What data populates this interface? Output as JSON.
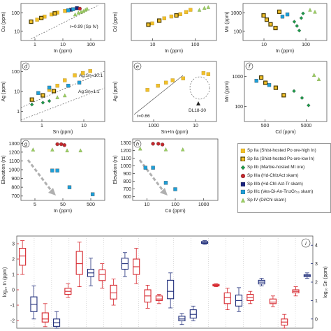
{
  "colors": {
    "IIa": "#f2c029",
    "IIa_edge": "#a07d14",
    "IIb": "#f2c029",
    "IIb_edge": "#4a3b00",
    "IIc": "#1d9a4a",
    "IIIa": "#c4282d",
    "IIIb": "#1a237e",
    "IIIc": "#1e9fd8",
    "IV": "#9bcf63",
    "box_in": "#d6262d",
    "box_sn": "#1f2d7a",
    "arrow": "#b0b0b0"
  },
  "panels": {
    "a": {
      "ylabel": "Cu (ppm)",
      "xlabel": "In (ppm)",
      "xticks": [
        "1",
        "10",
        "100"
      ],
      "yticks": [
        "100",
        "10"
      ],
      "annotation": "r=0.99 (Sp IV)"
    },
    "b": {
      "ylabel": "Cd (ppm)",
      "xlabel": "In (ppm)",
      "xticks": [
        "10",
        "100"
      ]
    },
    "c": {
      "ylabel": "Mn (ppm)",
      "xlabel": "In (ppm)",
      "xticks": [
        "10",
        "100"
      ],
      "yticks": [
        "1000",
        "100"
      ]
    },
    "d": {
      "label": "d",
      "ylabel": "Ag (ppm)",
      "xlabel": "Sn (ppm)",
      "xticks": [
        "1",
        "10"
      ],
      "yticks": [
        "100",
        "10",
        "1"
      ],
      "line1": "Ag:Sn=10:1",
      "line2": "Ag:Sn=1:1"
    },
    "e": {
      "label": "e",
      "ylabel": "Ag (ppm)",
      "xlabel": "Sn+In (ppm)",
      "xticks": [
        "1000",
        "10"
      ],
      "annotation_r": "r=0.66",
      "annotation_dl": "DL18-30"
    },
    "f": {
      "label": "f",
      "ylabel": "Mn (ppm)",
      "xlabel": "Cd (ppm)",
      "xticks": [
        "500",
        "5000"
      ],
      "yticks": [
        "1000",
        "100"
      ]
    },
    "g": {
      "label": "g",
      "ylabel": "Elevation (m)",
      "xlabel": "In (ppm)",
      "xticks": [
        "5",
        "50",
        "500"
      ],
      "yticks": [
        "1300",
        "1200",
        "1100",
        "1000",
        "900",
        "800",
        "700"
      ]
    },
    "h": {
      "label": "h",
      "ylabel": "Elevation (m)",
      "xlabel": "Co (ppm)",
      "xticks": [
        "10",
        "100",
        "1000"
      ],
      "yticks": [
        "1300",
        "1200",
        "1100",
        "1000",
        "900",
        "800",
        "700",
        "600"
      ]
    },
    "i": {
      "label": "i",
      "ylabel_left": "log₁₀ In (ppm)",
      "ylabel_right": "log₁₀ Sn (ppm)",
      "yticks_left": [
        "3",
        "2",
        "1",
        "0",
        "-1",
        "-2"
      ],
      "yticks_right": [
        "4",
        "3",
        "2",
        "1",
        "0"
      ]
    }
  },
  "legend": [
    {
      "key": "IIa",
      "label": "Sp IIa (Shist-hosted Po ore-high In)",
      "shape": "square"
    },
    {
      "key": "IIb",
      "label": "Sp IIa (Shist-hosted Po ore-low In)",
      "shape": "square-edge"
    },
    {
      "key": "IIc",
      "label": "Sp IIb (Marble-hosted Mt ore)",
      "shape": "diamond"
    },
    {
      "key": "IIIa",
      "label": "Sp IIIa (Hd-Chl±Act skarn)",
      "shape": "circle"
    },
    {
      "key": "IIIb",
      "label": "Sp IIIb (Hd-Chl-Act-Tr skarn)",
      "shape": "square"
    },
    {
      "key": "IIIc",
      "label": "Sp IIIc (Ves-Di-An-Tn±Gr₅₀ skarn)",
      "shape": "square"
    },
    {
      "key": "IV",
      "label": "Sp IV (Di/Chl skarn)",
      "shape": "triangle"
    }
  ],
  "chart_data": [
    {
      "panel": "a",
      "type": "scatter",
      "xlabel": "In (ppm)",
      "ylabel": "Cu (ppm)",
      "xscale": "log",
      "yscale": "log",
      "xlim": [
        1,
        300
      ],
      "ylim": [
        5,
        300
      ],
      "series": [
        {
          "key": "IV",
          "points": [
            [
              40,
              90
            ],
            [
              50,
              110
            ],
            [
              60,
              120
            ],
            [
              70,
              130
            ],
            [
              80,
              150
            ],
            [
              90,
              170
            ]
          ]
        },
        {
          "key": "IIa",
          "points": [
            [
              3,
              50
            ],
            [
              5,
              70
            ],
            [
              8,
              90
            ],
            [
              12,
              110
            ],
            [
              20,
              130
            ]
          ]
        },
        {
          "key": "IIb",
          "points": [
            [
              2,
              40
            ],
            [
              4,
              60
            ],
            [
              10,
              100
            ]
          ]
        },
        {
          "key": "IIIb",
          "points": [
            [
              30,
              150
            ],
            [
              45,
              180
            ]
          ]
        },
        {
          "key": "IIIc",
          "points": [
            [
              25,
              140
            ],
            [
              35,
              160
            ]
          ]
        },
        {
          "key": "IIIa",
          "points": [
            [
              55,
              170
            ]
          ]
        }
      ]
    },
    {
      "panel": "b",
      "type": "scatter",
      "xlabel": "In (ppm)",
      "ylabel": "Cd (ppm)",
      "xscale": "log",
      "yscale": "log",
      "xlim": [
        3,
        400
      ],
      "ylim": [
        500,
        10000
      ],
      "series": [
        {
          "key": "IIa",
          "points": [
            [
              10,
              2000
            ],
            [
              20,
              3000
            ],
            [
              30,
              3500
            ],
            [
              50,
              4200
            ],
            [
              70,
              5000
            ],
            [
              90,
              6000
            ]
          ]
        },
        {
          "key": "IIb",
          "points": [
            [
              8,
              1800
            ],
            [
              15,
              2500
            ],
            [
              40,
              3800
            ]
          ]
        },
        {
          "key": "IV",
          "points": [
            [
              150,
              6000
            ],
            [
              200,
              7000
            ],
            [
              250,
              7500
            ]
          ]
        }
      ]
    },
    {
      "panel": "c",
      "type": "scatter",
      "xlabel": "In (ppm)",
      "ylabel": "Mn (ppm)",
      "xscale": "log",
      "yscale": "log",
      "xlim": [
        3,
        400
      ],
      "ylim": [
        50,
        3000
      ],
      "series": [
        {
          "key": "IIb",
          "points": [
            [
              10,
              800
            ],
            [
              12,
              500
            ],
            [
              15,
              300
            ],
            [
              20,
              200
            ],
            [
              25,
              1200
            ]
          ]
        },
        {
          "key": "IIc",
          "points": [
            [
              60,
              400
            ],
            [
              70,
              250
            ],
            [
              80,
              150
            ],
            [
              90,
              600
            ],
            [
              100,
              1000
            ]
          ]
        },
        {
          "key": "IIIc",
          "points": [
            [
              30,
              700
            ],
            [
              40,
              900
            ]
          ]
        },
        {
          "key": "IV",
          "points": [
            [
              150,
              1500
            ],
            [
              200,
              1200
            ]
          ]
        }
      ]
    },
    {
      "panel": "d",
      "type": "scatter",
      "xlabel": "Sn (ppm)",
      "ylabel": "Ag (ppm)",
      "xscale": "log",
      "yscale": "log",
      "xlim": [
        0.5,
        100
      ],
      "ylim": [
        1,
        300
      ],
      "series": [
        {
          "key": "IIa",
          "points": [
            [
              3,
              20
            ],
            [
              5,
              30
            ],
            [
              8,
              50
            ],
            [
              15,
              80
            ],
            [
              25,
              100
            ],
            [
              40,
              120
            ]
          ]
        },
        {
          "key": "IIb",
          "points": [
            [
              1,
              8
            ],
            [
              2,
              12
            ],
            [
              4,
              18
            ]
          ]
        },
        {
          "key": "IIIc",
          "points": [
            [
              1.5,
              15
            ],
            [
              3,
              25
            ],
            [
              10,
              30
            ],
            [
              20,
              40
            ]
          ]
        },
        {
          "key": "IIc",
          "points": [
            [
              1,
              5
            ],
            [
              2,
              6
            ],
            [
              3,
              7
            ]
          ]
        },
        {
          "key": "IV",
          "points": [
            [
              5,
              10
            ],
            [
              8,
              12
            ]
          ]
        }
      ]
    },
    {
      "panel": "e",
      "type": "scatter",
      "xlabel": "Sn+In (ppm)",
      "ylabel": "Ag (ppm)",
      "xscale": "log",
      "yscale": "log",
      "xlim": [
        1000,
        10000
      ],
      "ylim": [
        1,
        300
      ],
      "series": [
        {
          "key": "IIa",
          "points": [
            [
              1500,
              20
            ],
            [
              2000,
              30
            ],
            [
              2500,
              40
            ],
            [
              3000,
              50
            ],
            [
              4000,
              60
            ],
            [
              7000,
              100
            ],
            [
              8000,
              90
            ]
          ]
        }
      ]
    },
    {
      "panel": "f",
      "type": "scatter",
      "xlabel": "Cd (ppm)",
      "ylabel": "Mn (ppm)",
      "xscale": "log",
      "yscale": "log",
      "xlim": [
        500,
        5000
      ],
      "ylim": [
        50,
        3000
      ],
      "series": [
        {
          "key": "IIb",
          "points": [
            [
              800,
              1000
            ],
            [
              900,
              700
            ],
            [
              1200,
              500
            ],
            [
              1500,
              300
            ]
          ]
        },
        {
          "key": "IIIc",
          "points": [
            [
              700,
              800
            ],
            [
              1000,
              600
            ]
          ]
        },
        {
          "key": "IIc",
          "points": [
            [
              2000,
              400
            ],
            [
              2500,
              250
            ],
            [
              3000,
              150
            ]
          ]
        },
        {
          "key": "IV",
          "points": [
            [
              3500,
              1200
            ],
            [
              4000,
              900
            ]
          ]
        }
      ]
    },
    {
      "panel": "g",
      "type": "scatter",
      "xlabel": "In (ppm)",
      "ylabel": "Elevation (m)",
      "xscale": "log",
      "xlim": [
        5,
        600
      ],
      "ylim": [
        650,
        1350
      ],
      "series": [
        {
          "key": "IIIa",
          "points": [
            [
              40,
              1290
            ],
            [
              50,
              1290
            ],
            [
              60,
              1280
            ]
          ]
        },
        {
          "key": "IV",
          "points": [
            [
              10,
              1230
            ],
            [
              30,
              1230
            ],
            [
              70,
              1220
            ],
            [
              150,
              1220
            ]
          ]
        },
        {
          "key": "IIIc",
          "points": [
            [
              30,
              990
            ],
            [
              40,
              990
            ],
            [
              80,
              800
            ],
            [
              300,
              720
            ]
          ]
        }
      ]
    },
    {
      "panel": "h",
      "type": "scatter",
      "xlabel": "Co (ppm)",
      "ylabel": "Elevation (m)",
      "xscale": "log",
      "xlim": [
        10,
        1000
      ],
      "ylim": [
        580,
        1350
      ],
      "series": [
        {
          "key": "IIIa",
          "points": [
            [
              30,
              1290
            ],
            [
              40,
              1290
            ],
            [
              50,
              1280
            ]
          ]
        },
        {
          "key": "IV",
          "points": [
            [
              15,
              1230
            ],
            [
              60,
              1220
            ],
            [
              150,
              1220
            ]
          ]
        },
        {
          "key": "IIIc",
          "points": [
            [
              20,
              990
            ],
            [
              30,
              990
            ],
            [
              60,
              800
            ],
            [
              100,
              720
            ]
          ]
        }
      ]
    },
    {
      "panel": "i",
      "type": "box",
      "y_left_range": [
        -2.5,
        3.5
      ],
      "y_right_range": [
        -0.5,
        4.5
      ],
      "boxes": [
        {
          "axis": "In",
          "q1": 1.6,
          "median": 2.2,
          "q3": 2.7,
          "min": 1.0,
          "max": 3.2
        },
        {
          "axis": "Sn",
          "q1": 0.4,
          "median": 0.8,
          "q3": 1.2,
          "min": 0.0,
          "max": 1.8
        },
        {
          "axis": "In",
          "q1": -2.1,
          "median": -1.9,
          "q3": -1.5,
          "min": -2.4,
          "max": -0.9
        },
        {
          "axis": "Sn",
          "q1": -0.4,
          "median": -0.2,
          "q3": 0.0,
          "min": -0.5,
          "max": 0.4
        },
        {
          "axis": "In",
          "q1": -0.3,
          "median": -0.1,
          "q3": 0.1,
          "min": -0.5,
          "max": 0.4
        },
        {
          "axis": "In",
          "q1": 1.0,
          "median": 1.7,
          "q3": 2.5,
          "min": 0.2,
          "max": 3.1
        },
        {
          "axis": "Sn",
          "q1": 2.3,
          "median": 2.5,
          "q3": 2.7,
          "min": 1.8,
          "max": 3.3
        },
        {
          "axis": "In",
          "q1": 0.6,
          "median": 1.0,
          "q3": 1.3,
          "min": 0.1,
          "max": 1.7
        },
        {
          "axis": "In",
          "q1": -0.6,
          "median": -0.2,
          "q3": 0.3,
          "min": -1.0,
          "max": 0.7
        },
        {
          "axis": "Sn",
          "q1": 2.7,
          "median": 3.0,
          "q3": 3.3,
          "min": 2.3,
          "max": 3.6
        },
        {
          "axis": "In",
          "q1": 1.0,
          "median": 1.5,
          "q3": 2.0,
          "min": 0.4,
          "max": 2.7
        },
        {
          "axis": "In",
          "q1": -0.8,
          "median": -0.4,
          "q3": 0.0,
          "min": -1.2,
          "max": 0.3
        },
        {
          "axis": "In",
          "q1": -0.7,
          "median": -0.6,
          "q3": -0.4,
          "min": -0.9,
          "max": -0.3
        },
        {
          "axis": "Sn",
          "q1": 1.1,
          "median": 1.5,
          "q3": 2.1,
          "min": 0.6,
          "max": 2.5
        },
        {
          "axis": "Sn",
          "q1": -0.1,
          "median": 0.0,
          "q3": 0.15,
          "min": -0.3,
          "max": 0.3
        },
        {
          "axis": "Sn",
          "q1": 0.05,
          "median": 0.25,
          "q3": 0.5,
          "min": -0.1,
          "max": 0.7
        },
        {
          "axis": "Sn",
          "q1": 4.1,
          "median": 4.15,
          "q3": 4.2,
          "min": 4.05,
          "max": 4.25
        },
        {
          "axis": "In",
          "q1": 0.25,
          "median": 0.3,
          "q3": 0.35,
          "min": 0.2,
          "max": 0.4
        },
        {
          "axis": "In",
          "q1": -0.9,
          "median": -0.5,
          "q3": -0.2,
          "min": -1.3,
          "max": 0.1
        },
        {
          "axis": "Sn",
          "q1": 0.7,
          "median": 1.0,
          "q3": 1.3,
          "min": 0.4,
          "max": 1.7
        },
        {
          "axis": "In",
          "q1": -0.7,
          "median": -0.5,
          "q3": -0.3,
          "min": -0.9,
          "max": -0.1
        },
        {
          "axis": "Sn",
          "q1": 1.9,
          "median": 2.0,
          "q3": 2.1,
          "min": 1.8,
          "max": 2.2
        },
        {
          "axis": "In",
          "q1": -0.9,
          "median": -0.8,
          "q3": -0.6,
          "min": -1.1,
          "max": -0.4
        },
        {
          "axis": "In",
          "q1": -2.3,
          "median": -2.1,
          "q3": -1.9,
          "min": -2.5,
          "max": -1.6
        },
        {
          "axis": "In",
          "q1": -0.2,
          "median": -0.1,
          "q3": 0.0,
          "min": -0.4,
          "max": 0.2
        },
        {
          "axis": "Sn",
          "q1": 2.3,
          "median": 2.35,
          "q3": 2.4,
          "min": 2.2,
          "max": 2.5
        }
      ]
    }
  ]
}
